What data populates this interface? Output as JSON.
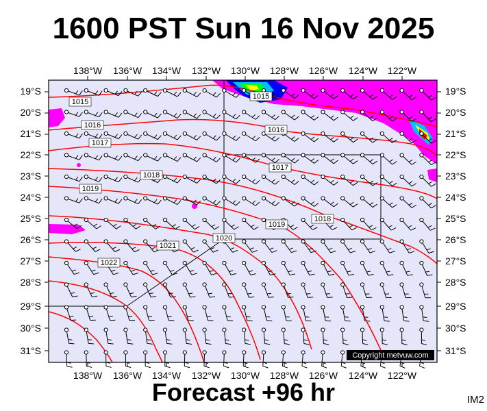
{
  "header": {
    "title": "1600 PST Sun 16 Nov 2025"
  },
  "footer": {
    "forecast": "Forecast +96 hr",
    "corner_code": "IM2"
  },
  "map": {
    "copyright": "Copyright metvuw.com",
    "colors": {
      "background": "#e6e6fa",
      "isobar": "#ff0000",
      "frame": "#000000"
    },
    "lon_labels": [
      "138°W",
      "136°W",
      "134°W",
      "132°W",
      "130°W",
      "128°W",
      "126°W",
      "124°W",
      "122°W"
    ],
    "lat_labels": [
      "19°S",
      "20°S",
      "21°S",
      "22°S",
      "23°S",
      "24°S",
      "25°S",
      "26°S",
      "27°S",
      "28°S",
      "29°S",
      "30°S",
      "31°S"
    ],
    "isobar_labels": {
      "i1015a": "1015",
      "i1015b": "1015",
      "i1016a": "1016",
      "i1016b": "1016",
      "i1017a": "1017",
      "i1017b": "1017",
      "i1018a": "1018",
      "i1018b": "1018",
      "i1019a": "1019",
      "i1019b": "1019",
      "i1020": "1020",
      "i1021": "1021",
      "i1022": "1022"
    },
    "precipitation_colors": [
      "#ff00ff",
      "#0000ff",
      "#00c0ff",
      "#00ff00",
      "#ffff00",
      "#ff8000",
      "#ff0000"
    ]
  }
}
